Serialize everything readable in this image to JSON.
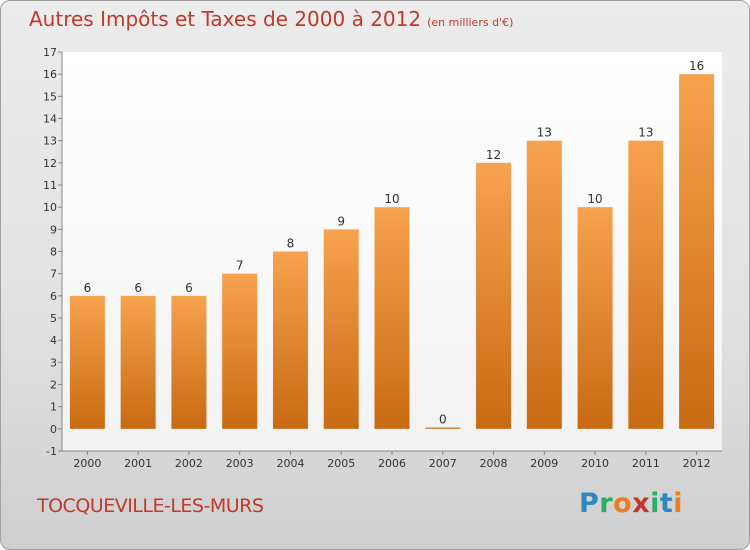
{
  "header": {
    "title": "Autres Impôts et Taxes de 2000 à 2012",
    "unit": "(en milliers d'€)"
  },
  "footer": {
    "commune": "TOCQUEVILLE-LES-MURS",
    "brand_letters": [
      {
        "ch": "P",
        "color": "#2e86c1"
      },
      {
        "ch": "r",
        "color": "#27ae60"
      },
      {
        "ch": "o",
        "color": "#e67e22"
      },
      {
        "ch": "x",
        "color": "#c0392b"
      },
      {
        "ch": "i",
        "color": "#27ae60"
      },
      {
        "ch": "t",
        "color": "#2e86c1"
      },
      {
        "ch": "i",
        "color": "#e67e22"
      }
    ]
  },
  "chart_data": {
    "type": "bar",
    "title": "Autres Impôts et Taxes de 2000 à 2012",
    "subtitle": "(en milliers d'€)",
    "categories": [
      "2000",
      "2001",
      "2002",
      "2003",
      "2004",
      "2005",
      "2006",
      "2007",
      "2008",
      "2009",
      "2010",
      "2011",
      "2012"
    ],
    "values": [
      6,
      6,
      6,
      7,
      8,
      9,
      10,
      0,
      12,
      13,
      10,
      13,
      16
    ],
    "ylim": [
      -1,
      17
    ],
    "yticks": [
      -1,
      0,
      1,
      2,
      3,
      4,
      5,
      6,
      7,
      8,
      9,
      10,
      11,
      12,
      13,
      14,
      15,
      16,
      17
    ],
    "grid": false,
    "bar_color_top": "#f7a24e",
    "bar_color_bottom": "#c86a12"
  }
}
